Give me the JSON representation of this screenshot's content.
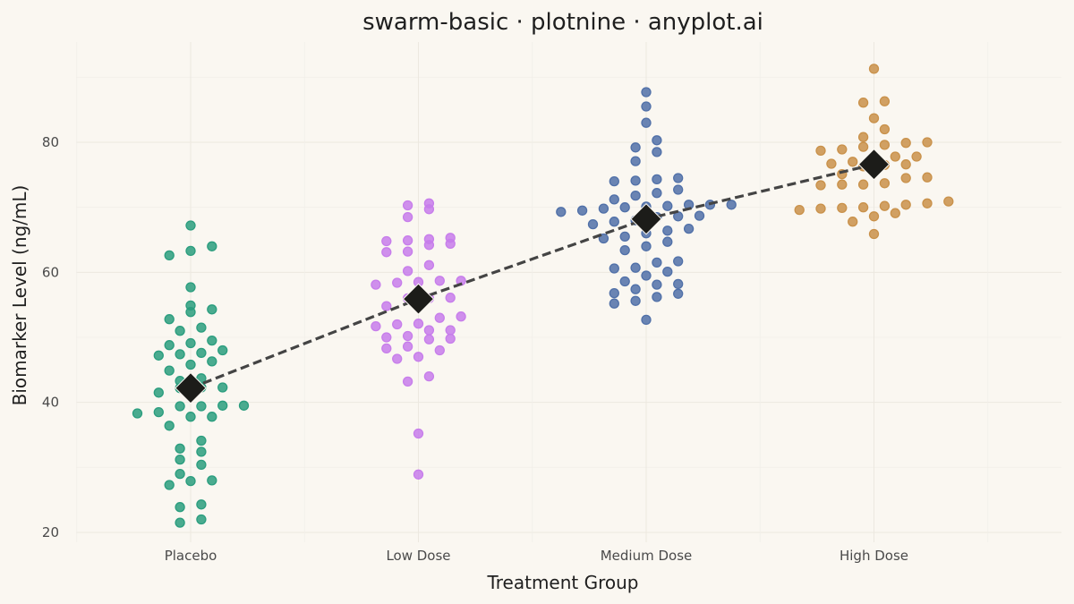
{
  "chart_data": {
    "type": "scatter",
    "subtype": "swarm",
    "title": "swarm-basic · plotnine · anyplot.ai",
    "xlabel": "Treatment Group",
    "ylabel": "Biomarker Level (ng/mL)",
    "categories": [
      "Placebo",
      "Low Dose",
      "Medium Dose",
      "High Dose"
    ],
    "yticks": [
      20,
      40,
      60,
      80
    ],
    "ylim": [
      18.5,
      94
    ],
    "grid": true,
    "legend": "none",
    "series": [
      {
        "color": "#2A9D7E",
        "values": [
          21.5,
          22.0,
          23.9,
          24.3,
          27.3,
          27.9,
          28.0,
          29.0,
          30.4,
          31.2,
          32.4,
          32.9,
          34.1,
          36.4,
          37.8,
          37.8,
          38.3,
          38.5,
          39.4,
          39.4,
          39.5,
          39.5,
          41.5,
          42.2,
          42.3,
          42.3,
          43.3,
          43.7,
          44.9,
          45.8,
          46.3,
          47.2,
          47.4,
          47.6,
          48.0,
          48.8,
          49.1,
          49.5,
          51.0,
          51.5,
          52.8,
          53.9,
          54.3,
          54.9,
          57.7,
          62.6,
          63.3,
          64.0,
          67.2
        ]
      },
      {
        "color": "#C77DEB",
        "values": [
          28.9,
          35.2,
          43.2,
          44.0,
          46.7,
          47.0,
          48.0,
          48.3,
          48.6,
          49.7,
          49.8,
          50.0,
          50.2,
          51.1,
          51.1,
          51.7,
          52.0,
          52.1,
          53.0,
          53.2,
          54.8,
          56.0,
          56.0,
          56.1,
          58.1,
          58.4,
          58.5,
          58.7,
          58.7,
          60.2,
          61.1,
          63.1,
          63.2,
          64.2,
          64.4,
          64.8,
          64.9,
          65.1,
          65.3,
          68.5,
          69.7,
          70.3,
          70.6
        ]
      },
      {
        "color": "#5070A8",
        "values": [
          52.7,
          55.2,
          55.6,
          56.2,
          56.7,
          56.8,
          57.4,
          58.1,
          58.2,
          58.6,
          59.5,
          60.1,
          60.6,
          60.7,
          61.5,
          61.7,
          63.4,
          64.0,
          64.7,
          65.2,
          65.5,
          66.0,
          66.4,
          66.7,
          67.4,
          67.8,
          68.0,
          68.5,
          68.6,
          68.7,
          69.3,
          69.5,
          69.8,
          70.0,
          70.1,
          70.2,
          70.4,
          70.4,
          70.4,
          71.2,
          71.8,
          72.2,
          72.7,
          74.0,
          74.1,
          74.3,
          74.5,
          77.1,
          78.5,
          79.2,
          80.3,
          83.0,
          85.5,
          87.7
        ]
      },
      {
        "color": "#C9914A",
        "values": [
          65.9,
          67.8,
          68.6,
          69.1,
          69.6,
          69.8,
          69.9,
          70.0,
          70.2,
          70.4,
          70.6,
          70.9,
          73.4,
          73.5,
          73.5,
          73.7,
          74.5,
          74.6,
          75.1,
          76.3,
          76.5,
          76.6,
          76.7,
          77.0,
          77.4,
          77.8,
          77.8,
          78.7,
          78.9,
          79.3,
          79.6,
          79.9,
          80.0,
          80.8,
          82.0,
          83.7,
          86.1,
          86.3,
          91.3
        ]
      }
    ],
    "summary": {
      "marker": "diamond",
      "color": "#1C1C19",
      "line_style": "dashed",
      "values": [
        42.2,
        55.9,
        68.2,
        76.6
      ]
    }
  }
}
